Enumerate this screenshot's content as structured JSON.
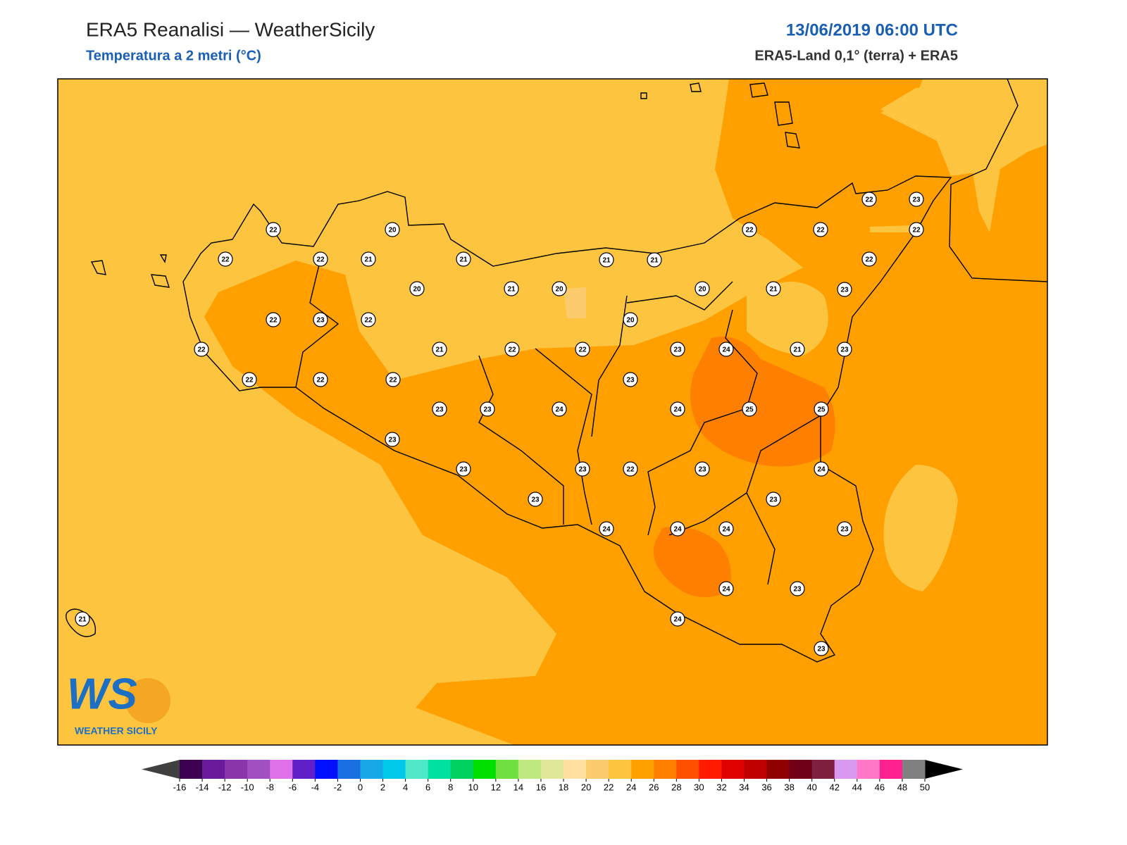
{
  "header": {
    "title": "ERA5 Reanalisi — WeatherSicily",
    "subtitle": "Temperatura a 2 metri (°C)",
    "datetime": "13/06/2019 06:00 UTC",
    "source": "ERA5-Land 0,1° (terra) + ERA5"
  },
  "stations": [
    22,
    20,
    22,
    22,
    21,
    21,
    20,
    21,
    20,
    22,
    23,
    22,
    22,
    21,
    22,
    22,
    22,
    22,
    22,
    23,
    23,
    24,
    23,
    23,
    23,
    21,
    21,
    20,
    20,
    22,
    22,
    22,
    23,
    22,
    22,
    21,
    23,
    23,
    24,
    21,
    23,
    23,
    24,
    25,
    25,
    23,
    22,
    23,
    24,
    23,
    24,
    24,
    24,
    23,
    24,
    23,
    24,
    23,
    21
  ],
  "colorbar": {
    "ticks": [
      -16,
      -14,
      -12,
      -10,
      -8,
      -6,
      -4,
      -2,
      0,
      2,
      4,
      6,
      8,
      10,
      12,
      14,
      16,
      18,
      20,
      22,
      24,
      26,
      28,
      30,
      32,
      34,
      36,
      38,
      40,
      42,
      44,
      46,
      48,
      50
    ],
    "colors": [
      "#3d0050",
      "#6a1a9a",
      "#8a35aa",
      "#a050c0",
      "#e070e8",
      "#6020c8",
      "#0010ff",
      "#1a70e0",
      "#18a8e8",
      "#00c8e8",
      "#50e8c8",
      "#00e0a0",
      "#00d060",
      "#00e000",
      "#70e040",
      "#c0e880",
      "#e0e898",
      "#ffe0a0",
      "#fccb6e",
      "#fdc43f",
      "#ffa000",
      "#ff7f00",
      "#ff5000",
      "#ff1a00",
      "#e00000",
      "#c00000",
      "#900000",
      "#700018",
      "#802040",
      "#d898f0",
      "#ff78c8",
      "#ff2090",
      "#808080",
      "#3a3a3a"
    ],
    "under_color": "#404040",
    "over_color": "#000000"
  },
  "logo": {
    "text": "WS",
    "caption": "WEATHER SICILY"
  }
}
